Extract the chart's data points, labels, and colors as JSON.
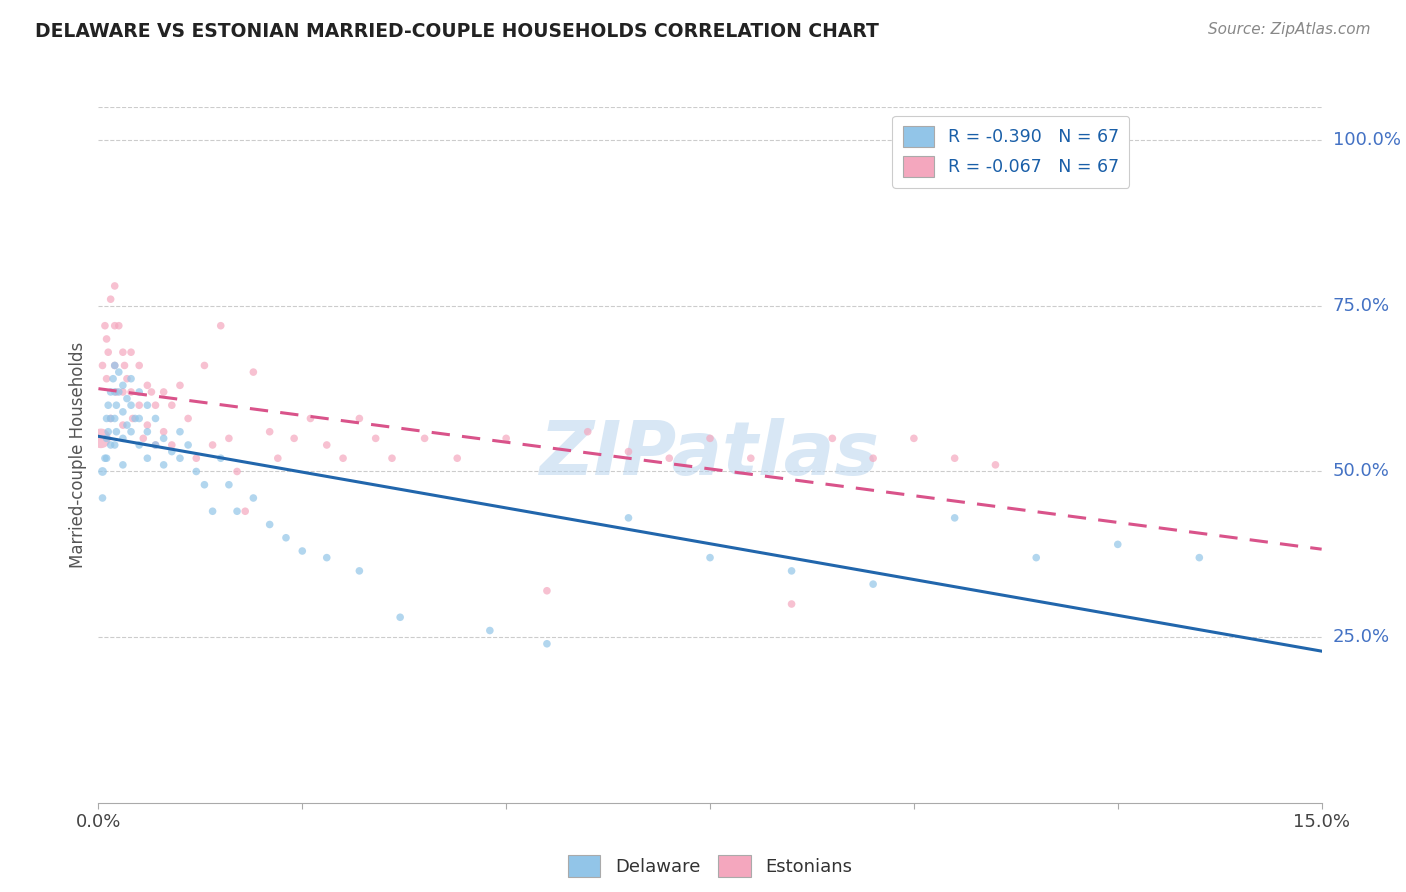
{
  "title": "DELAWARE VS ESTONIAN MARRIED-COUPLE HOUSEHOLDS CORRELATION CHART",
  "source": "Source: ZipAtlas.com",
  "ylabel": "Married-couple Households",
  "yticks": [
    "25.0%",
    "50.0%",
    "75.0%",
    "100.0%"
  ],
  "ytick_vals": [
    0.25,
    0.5,
    0.75,
    1.0
  ],
  "legend_line1": "R = -0.390   N = 67",
  "legend_line2": "R = -0.067   N = 67",
  "blue_color": "#92c5e8",
  "pink_color": "#f4a7be",
  "blue_line_color": "#2166ac",
  "pink_line_color": "#d9538a",
  "watermark": "ZIPatlas",
  "xlim": [
    0.0,
    0.15
  ],
  "ylim": [
    0.0,
    1.05
  ],
  "delaware_x": [
    0.0005,
    0.0005,
    0.0008,
    0.001,
    0.001,
    0.001,
    0.0012,
    0.0012,
    0.0015,
    0.0015,
    0.0015,
    0.0018,
    0.002,
    0.002,
    0.002,
    0.002,
    0.0022,
    0.0022,
    0.0025,
    0.0025,
    0.003,
    0.003,
    0.003,
    0.003,
    0.0035,
    0.0035,
    0.004,
    0.004,
    0.004,
    0.0045,
    0.005,
    0.005,
    0.005,
    0.006,
    0.006,
    0.006,
    0.007,
    0.007,
    0.008,
    0.008,
    0.009,
    0.01,
    0.01,
    0.011,
    0.012,
    0.013,
    0.014,
    0.015,
    0.016,
    0.017,
    0.019,
    0.021,
    0.023,
    0.025,
    0.028,
    0.032,
    0.037,
    0.048,
    0.055,
    0.065,
    0.075,
    0.085,
    0.095,
    0.105,
    0.115,
    0.125,
    0.135
  ],
  "delaware_y": [
    0.5,
    0.46,
    0.52,
    0.58,
    0.55,
    0.52,
    0.56,
    0.6,
    0.62,
    0.58,
    0.54,
    0.64,
    0.66,
    0.62,
    0.58,
    0.54,
    0.6,
    0.56,
    0.65,
    0.62,
    0.63,
    0.59,
    0.55,
    0.51,
    0.61,
    0.57,
    0.64,
    0.6,
    0.56,
    0.58,
    0.62,
    0.58,
    0.54,
    0.6,
    0.56,
    0.52,
    0.58,
    0.54,
    0.55,
    0.51,
    0.53,
    0.56,
    0.52,
    0.54,
    0.5,
    0.48,
    0.44,
    0.52,
    0.48,
    0.44,
    0.46,
    0.42,
    0.4,
    0.38,
    0.37,
    0.35,
    0.28,
    0.26,
    0.24,
    0.43,
    0.37,
    0.35,
    0.33,
    0.43,
    0.37,
    0.39,
    0.37
  ],
  "delaware_size": [
    40,
    30,
    30,
    30,
    30,
    30,
    30,
    30,
    30,
    30,
    30,
    30,
    30,
    30,
    30,
    30,
    30,
    30,
    30,
    30,
    30,
    30,
    30,
    30,
    30,
    30,
    30,
    30,
    30,
    30,
    30,
    30,
    30,
    30,
    30,
    30,
    30,
    30,
    30,
    30,
    30,
    30,
    30,
    30,
    30,
    30,
    30,
    30,
    30,
    30,
    30,
    30,
    30,
    30,
    30,
    30,
    30,
    30,
    30,
    30,
    30,
    30,
    30,
    30,
    30,
    30,
    30
  ],
  "estonian_x": [
    0.0003,
    0.0005,
    0.0008,
    0.001,
    0.001,
    0.0012,
    0.0015,
    0.0015,
    0.002,
    0.002,
    0.002,
    0.0022,
    0.0025,
    0.003,
    0.003,
    0.003,
    0.0032,
    0.0035,
    0.004,
    0.004,
    0.0042,
    0.005,
    0.005,
    0.0055,
    0.006,
    0.006,
    0.0065,
    0.007,
    0.007,
    0.008,
    0.008,
    0.009,
    0.009,
    0.01,
    0.011,
    0.012,
    0.013,
    0.014,
    0.015,
    0.016,
    0.017,
    0.018,
    0.019,
    0.021,
    0.022,
    0.024,
    0.026,
    0.028,
    0.03,
    0.032,
    0.034,
    0.036,
    0.04,
    0.044,
    0.05,
    0.055,
    0.06,
    0.065,
    0.07,
    0.075,
    0.08,
    0.085,
    0.09,
    0.095,
    0.1,
    0.105,
    0.11
  ],
  "estonian_y": [
    0.55,
    0.66,
    0.72,
    0.7,
    0.64,
    0.68,
    0.76,
    0.58,
    0.78,
    0.72,
    0.66,
    0.62,
    0.72,
    0.68,
    0.62,
    0.57,
    0.66,
    0.64,
    0.68,
    0.62,
    0.58,
    0.66,
    0.6,
    0.55,
    0.63,
    0.57,
    0.62,
    0.6,
    0.54,
    0.62,
    0.56,
    0.6,
    0.54,
    0.63,
    0.58,
    0.52,
    0.66,
    0.54,
    0.72,
    0.55,
    0.5,
    0.44,
    0.65,
    0.56,
    0.52,
    0.55,
    0.58,
    0.54,
    0.52,
    0.58,
    0.55,
    0.52,
    0.55,
    0.52,
    0.55,
    0.32,
    0.56,
    0.53,
    0.52,
    0.55,
    0.52,
    0.3,
    0.55,
    0.52,
    0.55,
    0.52,
    0.51
  ],
  "estonian_size": [
    200,
    30,
    30,
    30,
    30,
    30,
    30,
    30,
    30,
    30,
    30,
    30,
    30,
    30,
    30,
    30,
    30,
    30,
    30,
    30,
    30,
    30,
    30,
    30,
    30,
    30,
    30,
    30,
    30,
    30,
    30,
    30,
    30,
    30,
    30,
    30,
    30,
    30,
    30,
    30,
    30,
    30,
    30,
    30,
    30,
    30,
    30,
    30,
    30,
    30,
    30,
    30,
    30,
    30,
    30,
    30,
    30,
    30,
    30,
    30,
    30,
    30,
    30,
    30,
    30,
    30,
    30
  ]
}
